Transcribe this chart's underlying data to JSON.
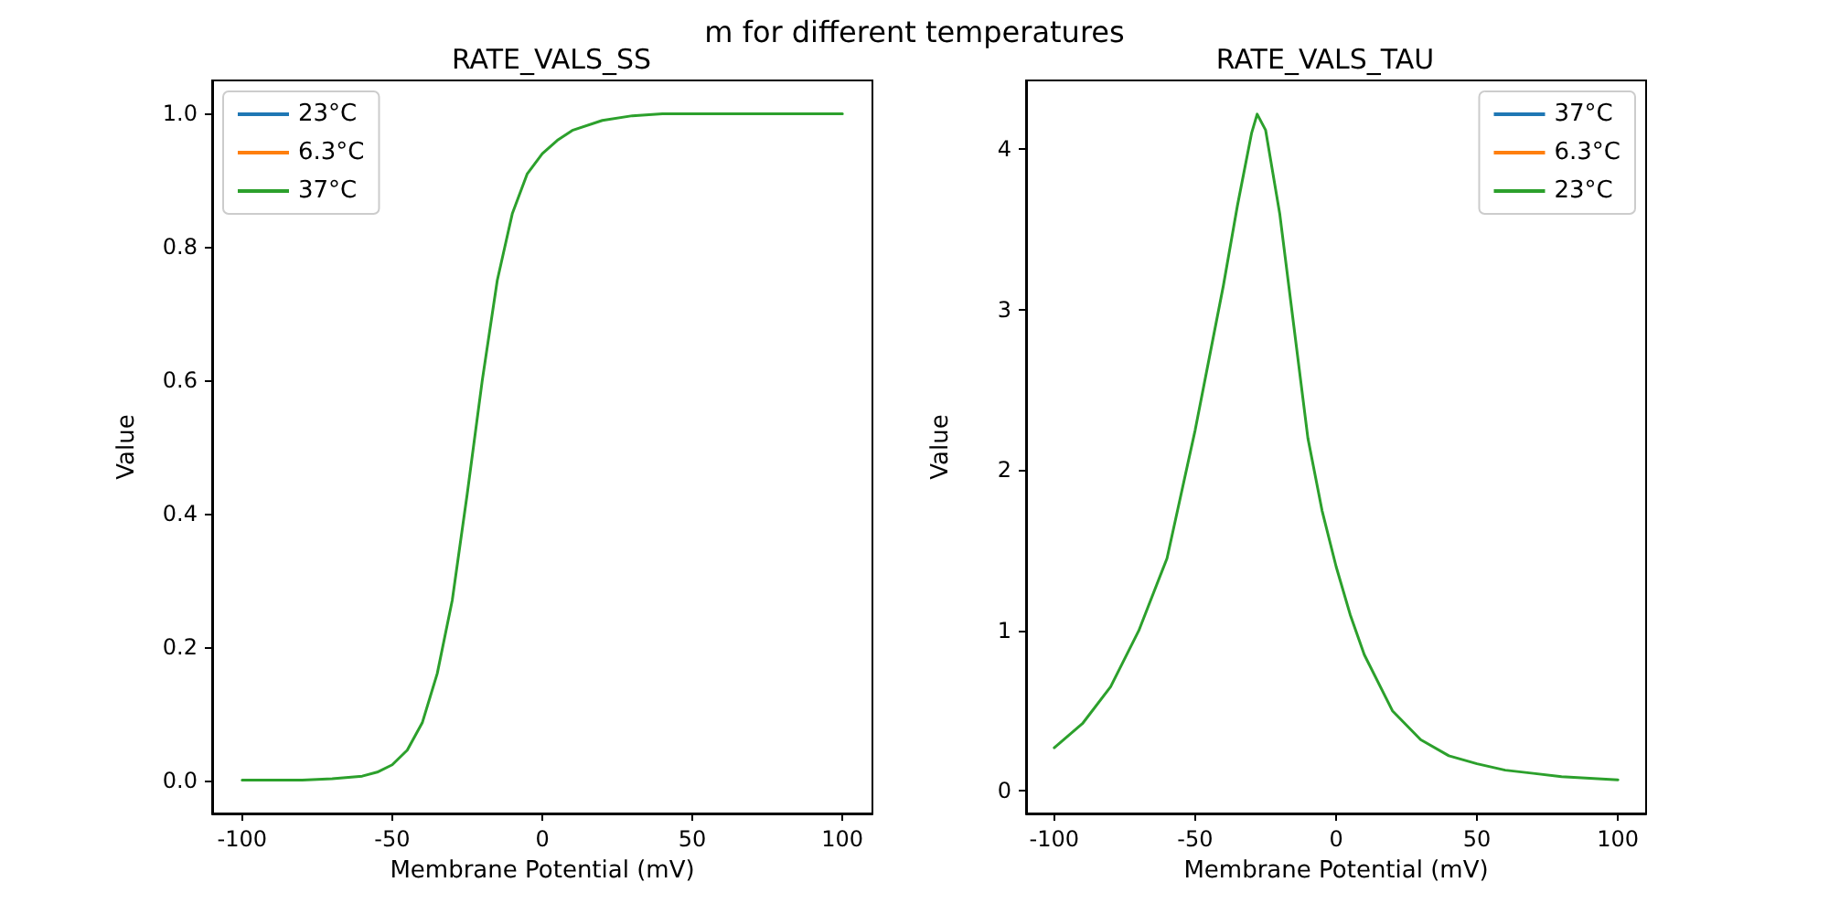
{
  "chart_data": [
    {
      "type": "line",
      "title": "RATE_VALS_SS",
      "xlabel": "Membrane Potential (mV)",
      "ylabel": "Value",
      "annotations": [
        "m for different temperatures"
      ],
      "legend": "top left",
      "grid": false,
      "marker": "none",
      "line_style": "solid",
      "xlim": [
        -110,
        110
      ],
      "xticks": [
        -100,
        -50,
        0,
        50,
        100
      ],
      "ylim": [
        -0.05,
        1.05
      ],
      "yticks": [
        {
          "value": 0,
          "label": "0.0"
        },
        {
          "value": 0.2,
          "label": "0.2"
        },
        {
          "value": 0.4,
          "label": "0.4"
        },
        {
          "value": 0.6,
          "label": "0.6"
        },
        {
          "value": 0.8,
          "label": "0.8"
        },
        {
          "value": 1,
          "label": "1.0"
        }
      ],
      "x": [
        -100,
        -90,
        -80,
        -70,
        -60,
        -55,
        -50,
        -45,
        -40,
        -35,
        -30,
        -25,
        -20,
        -15,
        -10,
        -5,
        0,
        5,
        10,
        20,
        30,
        40,
        50,
        60,
        70,
        80,
        90,
        100
      ],
      "series": [
        {
          "name": "23°C",
          "color": "#1f77b4",
          "values": [
            null,
            null,
            null,
            null,
            null,
            null,
            null,
            null,
            null,
            null,
            null,
            null,
            null,
            null,
            null,
            null,
            null,
            null,
            null,
            null,
            null,
            null,
            null,
            null,
            null,
            null,
            null,
            null
          ]
        },
        {
          "name": "6.3°C",
          "color": "#ff7f0e",
          "values": [
            null,
            null,
            null,
            null,
            null,
            null,
            null,
            null,
            null,
            null,
            null,
            null,
            null,
            null,
            null,
            null,
            null,
            null,
            null,
            null,
            null,
            null,
            null,
            null,
            null,
            null,
            null,
            null
          ]
        },
        {
          "name": "37°C",
          "color": "#2ca02c",
          "values": [
            0,
            0,
            0,
            0.002,
            0.006,
            0.012,
            0.023,
            0.045,
            0.086,
            0.16,
            0.27,
            0.43,
            0.6,
            0.75,
            0.85,
            0.91,
            0.94,
            0.96,
            0.975,
            0.99,
            0.997,
            1,
            1,
            1,
            1,
            1,
            1,
            1
          ]
        }
      ]
    },
    {
      "type": "line",
      "title": "RATE_VALS_TAU",
      "xlabel": "Membrane Potential (mV)",
      "ylabel": "Value",
      "legend": "top right",
      "grid": false,
      "marker": "none",
      "line_style": "solid",
      "xlim": [
        -110,
        110
      ],
      "xticks": [
        -100,
        -50,
        0,
        50,
        100
      ],
      "ylim": [
        -0.14,
        4.43
      ],
      "yticks": [
        0,
        1,
        2,
        3,
        4
      ],
      "x": [
        -100,
        -90,
        -80,
        -70,
        -60,
        -50,
        -45,
        -40,
        -35,
        -30,
        -28,
        -25,
        -20,
        -15,
        -10,
        -5,
        0,
        5,
        10,
        20,
        30,
        40,
        50,
        60,
        70,
        80,
        90,
        100
      ],
      "series": [
        {
          "name": "37°C",
          "color": "#1f77b4",
          "values": [
            null,
            null,
            null,
            null,
            null,
            null,
            null,
            null,
            null,
            null,
            null,
            null,
            null,
            null,
            null,
            null,
            null,
            null,
            null,
            null,
            null,
            null,
            null,
            null,
            null,
            null,
            null,
            null
          ]
        },
        {
          "name": "6.3°C",
          "color": "#ff7f0e",
          "values": [
            null,
            null,
            null,
            null,
            null,
            null,
            null,
            null,
            null,
            null,
            null,
            null,
            null,
            null,
            null,
            null,
            null,
            null,
            null,
            null,
            null,
            null,
            null,
            null,
            null,
            null,
            null,
            null
          ]
        },
        {
          "name": "23°C",
          "color": "#2ca02c",
          "values": [
            0.27,
            0.42,
            0.65,
            1.0,
            1.45,
            2.25,
            2.7,
            3.15,
            3.65,
            4.1,
            4.22,
            4.12,
            3.6,
            2.9,
            2.2,
            1.75,
            1.4,
            1.1,
            0.85,
            0.5,
            0.32,
            0.22,
            0.17,
            0.13,
            0.11,
            0.09,
            0.08,
            0.07
          ]
        }
      ]
    }
  ]
}
